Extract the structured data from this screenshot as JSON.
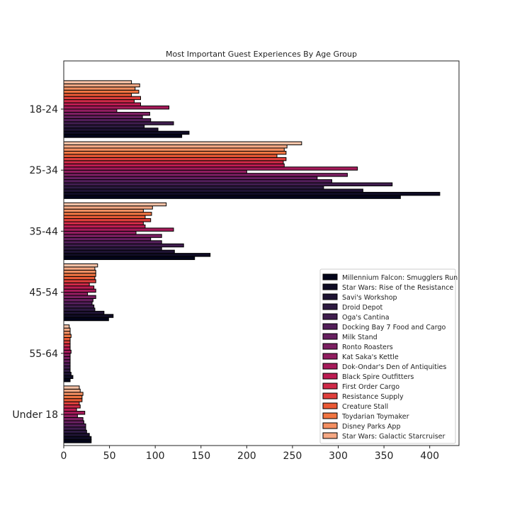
{
  "chart_data": {
    "type": "bar",
    "orientation": "horizontal",
    "title": "Most Important Guest Experiences By Age Group",
    "xlabel": "",
    "ylabel": "",
    "xlim": [
      0,
      432
    ],
    "xticks": [
      "0",
      "50",
      "100",
      "150",
      "200",
      "250",
      "300",
      "350",
      "400"
    ],
    "xtick_values": [
      0,
      50,
      100,
      150,
      200,
      250,
      300,
      350,
      400
    ],
    "grid": false,
    "legend_position": "lower-right",
    "categories": [
      "18-24",
      "25-34",
      "35-44",
      "45-54",
      "55-64",
      "Under 18"
    ],
    "series": [
      {
        "name": "Millennium Falcon: Smugglers Run",
        "color": "#03051a",
        "values": [
          129,
          368,
          143,
          49,
          7,
          30
        ]
      },
      {
        "name": "Star Wars: Rise of the Resistance",
        "color": "#0f0c24",
        "values": [
          137,
          411,
          160,
          54,
          10,
          30
        ]
      },
      {
        "name": "Savi's Workshop",
        "color": "#1e1333",
        "values": [
          103,
          327,
          121,
          44,
          8,
          28
        ]
      },
      {
        "name": "Droid Depot",
        "color": "#2d1a41",
        "values": [
          88,
          284,
          107,
          34,
          7,
          25
        ]
      },
      {
        "name": "Oga's Cantina",
        "color": "#3f1d4e",
        "values": [
          120,
          359,
          131,
          33,
          7,
          24
        ]
      },
      {
        "name": "Docking Bay 7 Food and Cargo",
        "color": "#521e59",
        "values": [
          95,
          293,
          107,
          31,
          7,
          24
        ]
      },
      {
        "name": "Milk Stand",
        "color": "#661f5f",
        "values": [
          86,
          277,
          95,
          32,
          7,
          22
        ]
      },
      {
        "name": "Ronto Roasters",
        "color": "#7b1f61",
        "values": [
          94,
          310,
          107,
          35,
          7,
          21
        ]
      },
      {
        "name": "Kat Saka's Kettle",
        "color": "#901d5f",
        "values": [
          58,
          200,
          79,
          26,
          7,
          15
        ]
      },
      {
        "name": "Dok-Ondar's Den of Antiquities",
        "color": "#a61b5a",
        "values": [
          115,
          321,
          120,
          35,
          8,
          23
        ]
      },
      {
        "name": "Black Spire Outfitters",
        "color": "#bc1c52",
        "values": [
          84,
          241,
          89,
          33,
          7,
          14
        ]
      },
      {
        "name": "First Order Cargo",
        "color": "#cf2a48",
        "values": [
          77,
          240,
          87,
          28,
          7,
          18
        ]
      },
      {
        "name": "Resistance Supply",
        "color": "#df3f3c",
        "values": [
          84,
          243,
          95,
          35,
          7,
          17
        ]
      },
      {
        "name": "Creature Stall",
        "color": "#ea5935",
        "values": [
          74,
          233,
          89,
          34,
          7,
          20
        ]
      },
      {
        "name": "Toydarian Toymaker",
        "color": "#f17542",
        "values": [
          82,
          243,
          96,
          35,
          8,
          20
        ]
      },
      {
        "name": "Disney Parks App",
        "color": "#f48f62",
        "values": [
          78,
          241,
          87,
          35,
          7,
          21
        ]
      },
      {
        "name": "Star Wars: Galactic Starcruiser",
        "color": "#f5a884",
        "values": [
          83,
          244,
          97,
          34,
          7,
          18
        ]
      },
      {
        "name": "",
        "color": "#f7c2a7",
        "values": [
          74,
          260,
          112,
          37,
          6,
          17
        ]
      }
    ]
  }
}
